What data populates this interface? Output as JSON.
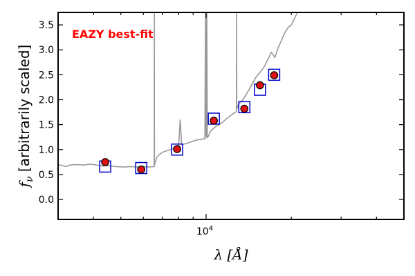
{
  "chart_data": {
    "type": "scatter",
    "title": "",
    "annotation": "EAZY best-fit",
    "annotation_color": "#ff0000",
    "xlabel": "λ [Å]",
    "ylabel": "f_ν [arbitrarily scaled]",
    "xscale": "log",
    "xlim": [
      3000,
      50000
    ],
    "ylim": [
      -0.4,
      3.75
    ],
    "x_tick_labels": [
      {
        "value": 10000,
        "base": "10",
        "exp": "4"
      }
    ],
    "y_ticks": [
      0.0,
      0.5,
      1.0,
      1.5,
      2.0,
      2.5,
      3.0,
      3.5
    ],
    "grid": false,
    "colors": {
      "sed": "#999999",
      "model": "#0000cc",
      "observed_fill": "#dd1111",
      "observed_edge": "#000000"
    },
    "series": [
      {
        "kind": "line",
        "role": "sed",
        "x": [
          3000,
          3100,
          3200,
          3300,
          3500,
          3700,
          3900,
          4100,
          4300,
          4500,
          4800,
          5100,
          5400,
          5700,
          6000,
          6300,
          6500,
          6560,
          6563,
          6570,
          6600,
          6700,
          6900,
          7100,
          7300,
          7500,
          7800,
          8000,
          8100,
          8200,
          8500,
          8800,
          9100,
          9400,
          9600,
          9700,
          9800,
          9900,
          9950,
          10000,
          10040,
          10050,
          10060,
          10100,
          10200,
          10300,
          10500,
          10800,
          11100,
          11500,
          11800,
          12200,
          12600,
          12800,
          12820,
          12830,
          12850,
          13000,
          13500,
          14000,
          14500,
          15000,
          15500,
          16000,
          16500,
          17000,
          17500,
          18000,
          18500,
          19000,
          19500,
          20000,
          20500,
          21000
        ],
        "y": [
          0.7,
          0.68,
          0.66,
          0.69,
          0.7,
          0.69,
          0.71,
          0.69,
          0.67,
          0.68,
          0.66,
          0.65,
          0.66,
          0.65,
          0.66,
          0.65,
          0.66,
          0.66,
          3.75,
          0.69,
          0.72,
          0.85,
          0.92,
          0.96,
          0.98,
          1.0,
          1.05,
          1.08,
          1.6,
          1.1,
          1.12,
          1.15,
          1.18,
          1.2,
          1.2,
          1.21,
          1.22,
          1.21,
          3.75,
          1.24,
          3.75,
          1.26,
          3.75,
          1.24,
          1.27,
          1.35,
          1.4,
          1.46,
          1.5,
          1.56,
          1.62,
          1.68,
          1.74,
          1.76,
          3.75,
          1.8,
          1.82,
          1.9,
          2.0,
          2.15,
          2.3,
          2.45,
          2.55,
          2.65,
          2.8,
          2.95,
          2.85,
          3.05,
          3.2,
          3.35,
          3.45,
          3.5,
          3.62,
          3.75
        ]
      },
      {
        "kind": "scatter",
        "role": "model",
        "marker": "open-square",
        "x": [
          4400,
          5900,
          7900,
          10650,
          13650,
          15500,
          17400
        ],
        "y": [
          0.66,
          0.63,
          1.0,
          1.62,
          1.85,
          2.2,
          2.5
        ]
      },
      {
        "kind": "scatter",
        "role": "observed",
        "marker": "filled-circle",
        "x": [
          4400,
          5900,
          7900,
          10650,
          13650,
          15500,
          17400
        ],
        "y": [
          0.75,
          0.6,
          1.01,
          1.58,
          1.82,
          2.29,
          2.49
        ]
      }
    ]
  }
}
